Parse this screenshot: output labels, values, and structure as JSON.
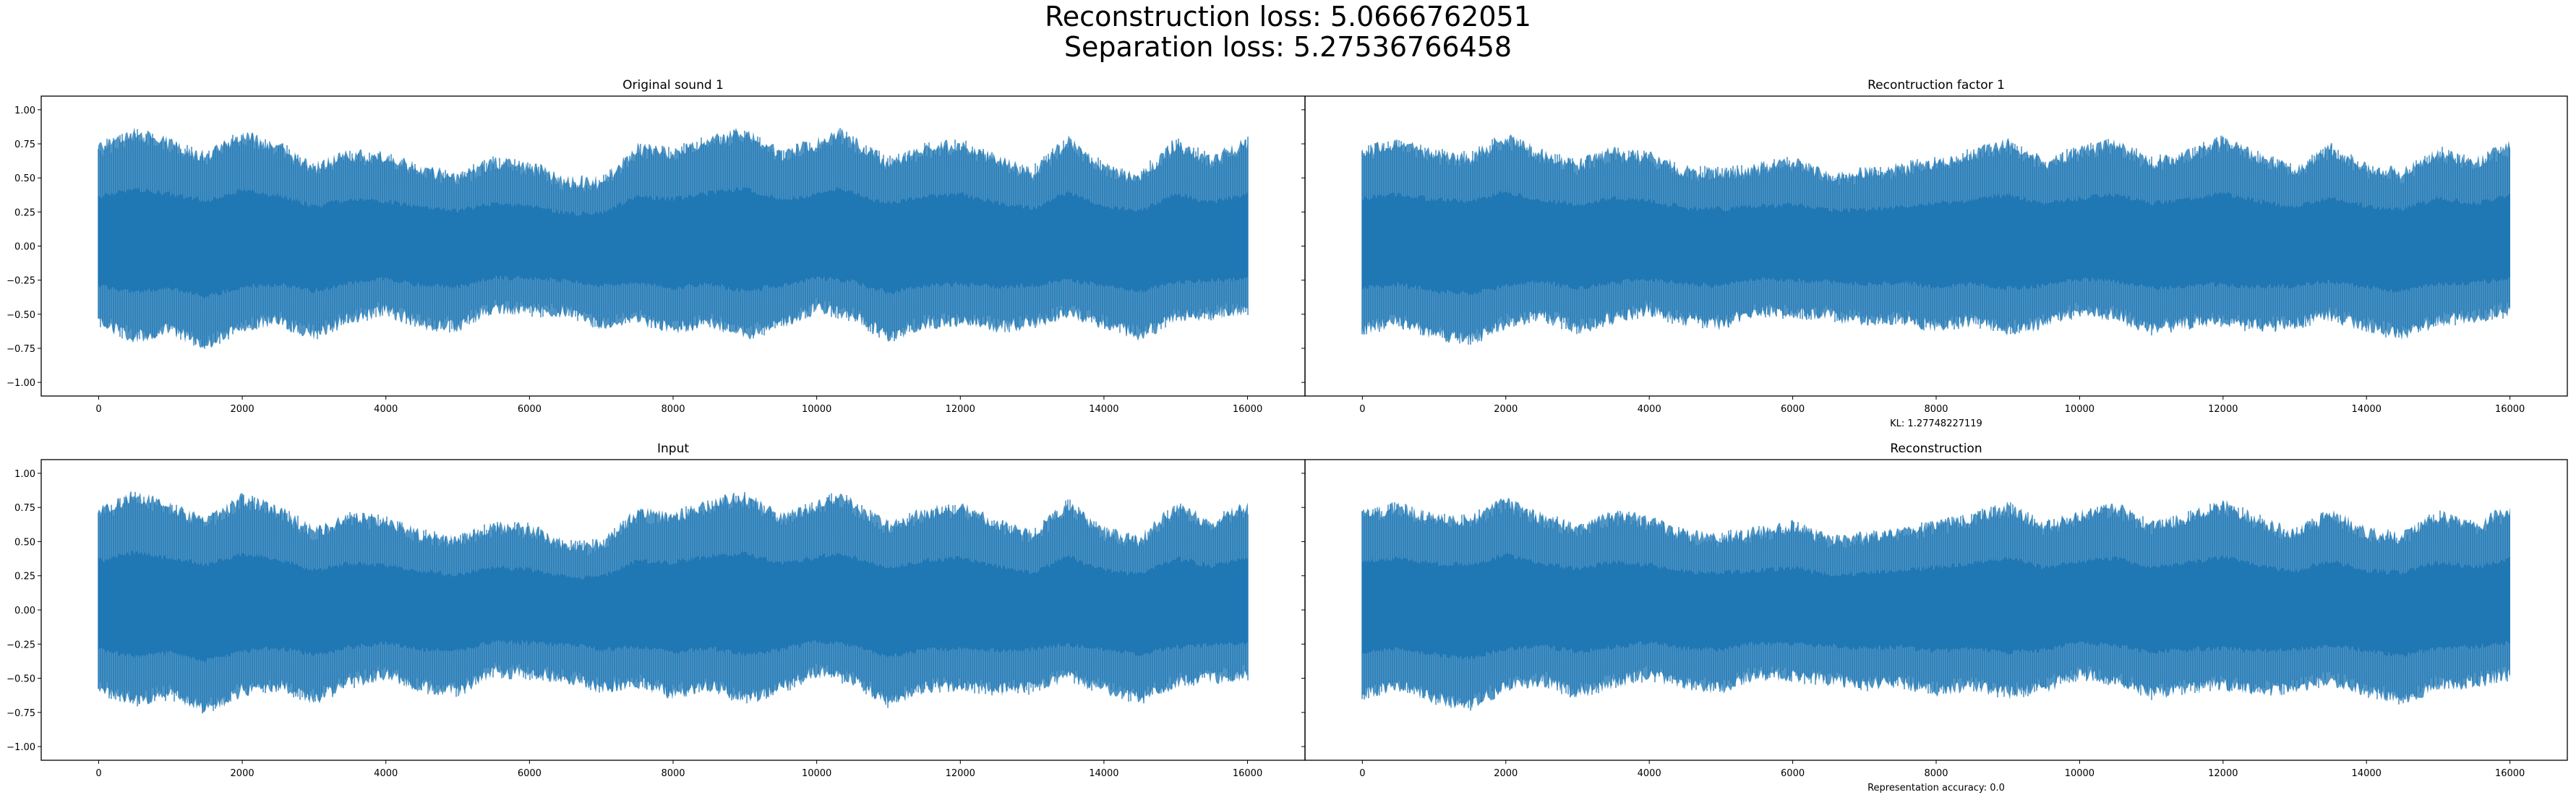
{
  "figure": {
    "suptitle_line1": "Reconstruction loss: 5.0666762051",
    "suptitle_line2": "Separation loss: 5.27536766458"
  },
  "chart_data": [
    {
      "type": "line",
      "title": "Original sound 1",
      "xlabel": "",
      "ylabel": "",
      "xlim": [
        -800,
        16800
      ],
      "ylim": [
        -1.1,
        1.1
      ],
      "x_ticks": [
        0,
        2000,
        4000,
        6000,
        8000,
        10000,
        12000,
        14000,
        16000
      ],
      "y_ticks": [
        -1.0,
        -0.75,
        -0.5,
        -0.25,
        0.0,
        0.25,
        0.5,
        0.75,
        1.0
      ],
      "x_tick_labels": [
        "0",
        "2000",
        "4000",
        "6000",
        "8000",
        "10000",
        "12000",
        "14000",
        "16000"
      ],
      "y_tick_labels": [
        "−1.00",
        "−0.75",
        "−0.50",
        "−0.25",
        "0.00",
        "0.25",
        "0.50",
        "0.75",
        "1.00"
      ],
      "color": "#1f77b4",
      "series": [
        {
          "upper_envelope": {
            "x": [
              0,
              500,
              1000,
              1500,
              2000,
              2500,
              3000,
              3500,
              4000,
              4500,
              5000,
              5500,
              6000,
              6500,
              7000,
              7500,
              8000,
              8500,
              9000,
              9500,
              10000,
              10300,
              11000,
              11500,
              12000,
              12500,
              13000,
              13500,
              14000,
              14500,
              15000,
              15500,
              16000
            ],
            "y": [
              0.76,
              0.88,
              0.8,
              0.7,
              0.86,
              0.78,
              0.62,
              0.72,
              0.7,
              0.6,
              0.56,
              0.66,
              0.64,
              0.52,
              0.52,
              0.76,
              0.73,
              0.82,
              0.88,
              0.72,
              0.8,
              0.88,
              0.66,
              0.76,
              0.8,
              0.68,
              0.59,
              0.82,
              0.62,
              0.56,
              0.8,
              0.68,
              0.81
            ]
          },
          "lower_envelope": {
            "x": [
              0,
              500,
              1000,
              1500,
              2000,
              2500,
              3000,
              3500,
              4000,
              4500,
              5000,
              5500,
              6000,
              6500,
              7000,
              7500,
              8000,
              8500,
              9000,
              9500,
              10000,
              10500,
              11000,
              11500,
              12000,
              12500,
              13000,
              13500,
              14000,
              14500,
              15000,
              15500,
              16000
            ],
            "y": [
              -0.62,
              -0.72,
              -0.66,
              -0.78,
              -0.64,
              -0.6,
              -0.7,
              -0.58,
              -0.52,
              -0.62,
              -0.64,
              -0.5,
              -0.52,
              -0.54,
              -0.62,
              -0.58,
              -0.66,
              -0.6,
              -0.7,
              -0.62,
              -0.5,
              -0.56,
              -0.72,
              -0.62,
              -0.6,
              -0.64,
              -0.62,
              -0.54,
              -0.62,
              -0.7,
              -0.58,
              -0.55,
              -0.52
            ]
          }
        }
      ]
    },
    {
      "type": "line",
      "title": "Recontruction factor 1",
      "xlabel": "KL: 1.27748227119",
      "ylabel": "",
      "xlim": [
        -800,
        16800
      ],
      "ylim": [
        -1.1,
        1.1
      ],
      "x_ticks": [
        0,
        2000,
        4000,
        6000,
        8000,
        10000,
        12000,
        14000,
        16000
      ],
      "x_tick_labels": [
        "0",
        "2000",
        "4000",
        "6000",
        "8000",
        "10000",
        "12000",
        "14000",
        "16000"
      ],
      "color": "#1f77b4",
      "series": [
        {
          "upper_envelope": {
            "x": [
              0,
              500,
              1000,
              1500,
              2000,
              2500,
              3000,
              3500,
              4000,
              4500,
              5000,
              5500,
              6000,
              6500,
              7000,
              7500,
              8000,
              8500,
              9000,
              9500,
              10000,
              10500,
              11000,
              11500,
              12000,
              12500,
              13000,
              13500,
              14000,
              14500,
              15000,
              15500,
              16000
            ],
            "y": [
              0.74,
              0.8,
              0.72,
              0.7,
              0.84,
              0.72,
              0.64,
              0.74,
              0.7,
              0.6,
              0.58,
              0.62,
              0.66,
              0.56,
              0.58,
              0.62,
              0.66,
              0.72,
              0.8,
              0.66,
              0.74,
              0.8,
              0.66,
              0.72,
              0.82,
              0.7,
              0.6,
              0.76,
              0.62,
              0.58,
              0.74,
              0.66,
              0.78
            ]
          },
          "lower_envelope": {
            "x": [
              0,
              500,
              1000,
              1500,
              2000,
              2500,
              3000,
              3500,
              4000,
              4500,
              5000,
              5500,
              6000,
              6500,
              7000,
              7500,
              8000,
              8500,
              9000,
              9500,
              10000,
              10500,
              11000,
              11500,
              12000,
              12500,
              13000,
              13500,
              14000,
              14500,
              15000,
              15500,
              16000
            ],
            "y": [
              -0.66,
              -0.6,
              -0.7,
              -0.74,
              -0.62,
              -0.56,
              -0.66,
              -0.58,
              -0.52,
              -0.6,
              -0.62,
              -0.52,
              -0.54,
              -0.56,
              -0.6,
              -0.58,
              -0.64,
              -0.6,
              -0.66,
              -0.62,
              -0.52,
              -0.56,
              -0.66,
              -0.62,
              -0.6,
              -0.64,
              -0.62,
              -0.56,
              -0.64,
              -0.7,
              -0.6,
              -0.58,
              -0.52
            ]
          }
        }
      ]
    },
    {
      "type": "line",
      "title": "Input",
      "xlabel": "",
      "ylabel": "",
      "xlim": [
        -800,
        16800
      ],
      "ylim": [
        -1.1,
        1.1
      ],
      "x_ticks": [
        0,
        2000,
        4000,
        6000,
        8000,
        10000,
        12000,
        14000,
        16000
      ],
      "y_ticks": [
        -1.0,
        -0.75,
        -0.5,
        -0.25,
        0.0,
        0.25,
        0.5,
        0.75,
        1.0
      ],
      "x_tick_labels": [
        "0",
        "2000",
        "4000",
        "6000",
        "8000",
        "10000",
        "12000",
        "14000",
        "16000"
      ],
      "y_tick_labels": [
        "−1.00",
        "−0.75",
        "−0.50",
        "−0.25",
        "0.00",
        "0.25",
        "0.50",
        "0.75",
        "1.00"
      ],
      "color": "#1f77b4",
      "series": [
        {
          "upper_envelope": {
            "x": [
              0,
              500,
              1000,
              1500,
              2000,
              2500,
              3000,
              3500,
              4000,
              4500,
              5000,
              5500,
              6000,
              6500,
              7000,
              7500,
              8000,
              8500,
              9000,
              9500,
              10000,
              10300,
              11000,
              11500,
              12000,
              12500,
              13000,
              13500,
              14000,
              14500,
              15000,
              15500,
              16000
            ],
            "y": [
              0.76,
              0.88,
              0.8,
              0.7,
              0.86,
              0.78,
              0.62,
              0.72,
              0.7,
              0.6,
              0.56,
              0.66,
              0.64,
              0.52,
              0.52,
              0.76,
              0.73,
              0.82,
              0.88,
              0.72,
              0.8,
              0.88,
              0.66,
              0.76,
              0.8,
              0.68,
              0.59,
              0.82,
              0.62,
              0.56,
              0.8,
              0.68,
              0.81
            ]
          },
          "lower_envelope": {
            "x": [
              0,
              500,
              1000,
              1500,
              2000,
              2500,
              3000,
              3500,
              4000,
              4500,
              5000,
              5500,
              6000,
              6500,
              7000,
              7500,
              8000,
              8500,
              9000,
              9500,
              10000,
              10500,
              11000,
              11500,
              12000,
              12500,
              13000,
              13500,
              14000,
              14500,
              15000,
              15500,
              16000
            ],
            "y": [
              -0.62,
              -0.72,
              -0.66,
              -0.78,
              -0.64,
              -0.6,
              -0.7,
              -0.58,
              -0.52,
              -0.62,
              -0.64,
              -0.5,
              -0.52,
              -0.54,
              -0.62,
              -0.58,
              -0.66,
              -0.6,
              -0.7,
              -0.62,
              -0.5,
              -0.56,
              -0.72,
              -0.62,
              -0.6,
              -0.64,
              -0.62,
              -0.54,
              -0.62,
              -0.7,
              -0.58,
              -0.55,
              -0.52
            ]
          }
        }
      ]
    },
    {
      "type": "line",
      "title": "Reconstruction",
      "xlabel": "Representation accuracy: 0.0",
      "ylabel": "",
      "xlim": [
        -800,
        16800
      ],
      "ylim": [
        -1.1,
        1.1
      ],
      "x_ticks": [
        0,
        2000,
        4000,
        6000,
        8000,
        10000,
        12000,
        14000,
        16000
      ],
      "x_tick_labels": [
        "0",
        "2000",
        "4000",
        "6000",
        "8000",
        "10000",
        "12000",
        "14000",
        "16000"
      ],
      "color": "#1f77b4",
      "series": [
        {
          "upper_envelope": {
            "x": [
              0,
              500,
              1000,
              1500,
              2000,
              2500,
              3000,
              3500,
              4000,
              4500,
              5000,
              5500,
              6000,
              6500,
              7000,
              7500,
              8000,
              8500,
              9000,
              9500,
              10000,
              10500,
              11000,
              11500,
              12000,
              12500,
              13000,
              13500,
              14000,
              14500,
              15000,
              15500,
              16000
            ],
            "y": [
              0.74,
              0.8,
              0.72,
              0.7,
              0.84,
              0.72,
              0.64,
              0.74,
              0.7,
              0.6,
              0.58,
              0.62,
              0.66,
              0.56,
              0.58,
              0.62,
              0.66,
              0.72,
              0.8,
              0.66,
              0.74,
              0.8,
              0.66,
              0.72,
              0.82,
              0.7,
              0.6,
              0.76,
              0.62,
              0.58,
              0.74,
              0.66,
              0.78
            ]
          },
          "lower_envelope": {
            "x": [
              0,
              500,
              1000,
              1500,
              2000,
              2500,
              3000,
              3500,
              4000,
              4500,
              5000,
              5500,
              6000,
              6500,
              7000,
              7500,
              8000,
              8500,
              9000,
              9500,
              10000,
              10500,
              11000,
              11500,
              12000,
              12500,
              13000,
              13500,
              14000,
              14500,
              15000,
              15500,
              16000
            ],
            "y": [
              -0.66,
              -0.6,
              -0.7,
              -0.74,
              -0.62,
              -0.56,
              -0.66,
              -0.58,
              -0.52,
              -0.6,
              -0.62,
              -0.52,
              -0.54,
              -0.56,
              -0.6,
              -0.58,
              -0.64,
              -0.6,
              -0.66,
              -0.62,
              -0.52,
              -0.56,
              -0.66,
              -0.62,
              -0.6,
              -0.64,
              -0.62,
              -0.56,
              -0.64,
              -0.7,
              -0.6,
              -0.58,
              -0.52
            ]
          }
        }
      ]
    }
  ]
}
